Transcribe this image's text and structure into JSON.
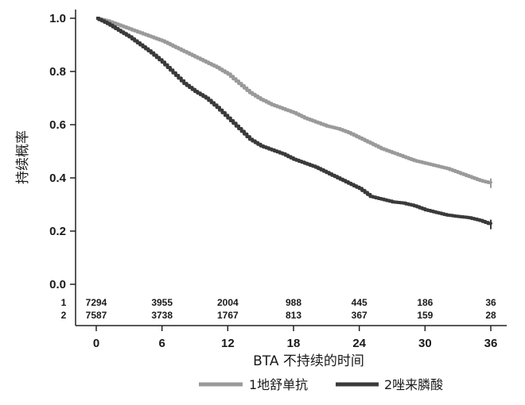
{
  "chart_data": {
    "type": "line",
    "title": "",
    "xlabel": "BTA 不持续的时间",
    "ylabel": "持续概率",
    "xlim": [
      0,
      36
    ],
    "ylim": [
      0,
      1.0
    ],
    "x_ticks": [
      "0",
      "6",
      "12",
      "18",
      "24",
      "30",
      "36"
    ],
    "y_ticks": [
      "0.0",
      "0.2",
      "0.4",
      "0.6",
      "0.8",
      "1.0"
    ],
    "series": [
      {
        "name": "1地舒单抗",
        "color": "#9a9a9a",
        "x": [
          0,
          1,
          2,
          3,
          4,
          5,
          6,
          7,
          8,
          9,
          10,
          11,
          12,
          13,
          14,
          15,
          16,
          17,
          18,
          19,
          20,
          21,
          22,
          23,
          24,
          25,
          26,
          27,
          28,
          29,
          30,
          31,
          32,
          33,
          34,
          35,
          36
        ],
        "y": [
          1.0,
          0.99,
          0.975,
          0.96,
          0.945,
          0.93,
          0.915,
          0.895,
          0.875,
          0.855,
          0.835,
          0.815,
          0.79,
          0.755,
          0.72,
          0.695,
          0.675,
          0.66,
          0.645,
          0.625,
          0.61,
          0.595,
          0.585,
          0.57,
          0.55,
          0.53,
          0.51,
          0.495,
          0.48,
          0.465,
          0.455,
          0.445,
          0.435,
          0.42,
          0.405,
          0.39,
          0.38
        ]
      },
      {
        "name": "2唑来膦酸",
        "color": "#3a3a3a",
        "x": [
          0,
          1,
          2,
          3,
          4,
          5,
          6,
          7,
          8,
          9,
          10,
          11,
          12,
          13,
          14,
          15,
          16,
          17,
          18,
          19,
          20,
          21,
          22,
          23,
          24,
          25,
          26,
          27,
          28,
          29,
          30,
          31,
          32,
          33,
          34,
          35,
          36
        ],
        "y": [
          1.0,
          0.98,
          0.955,
          0.93,
          0.9,
          0.87,
          0.835,
          0.795,
          0.755,
          0.725,
          0.7,
          0.665,
          0.625,
          0.585,
          0.545,
          0.52,
          0.505,
          0.49,
          0.47,
          0.455,
          0.44,
          0.42,
          0.4,
          0.38,
          0.36,
          0.33,
          0.32,
          0.31,
          0.305,
          0.295,
          0.28,
          0.27,
          0.26,
          0.255,
          0.25,
          0.24,
          0.225
        ]
      }
    ],
    "number_at_risk": {
      "times": [
        0,
        6,
        12,
        18,
        24,
        30,
        36
      ],
      "rows": [
        {
          "label": "1",
          "values": [
            "7294",
            "3955",
            "2004",
            "988",
            "445",
            "186",
            "36"
          ]
        },
        {
          "label": "2",
          "values": [
            "7587",
            "3738",
            "1767",
            "813",
            "367",
            "159",
            "28"
          ]
        }
      ]
    },
    "legend": {
      "position": "bottom-right"
    },
    "grid": false
  }
}
